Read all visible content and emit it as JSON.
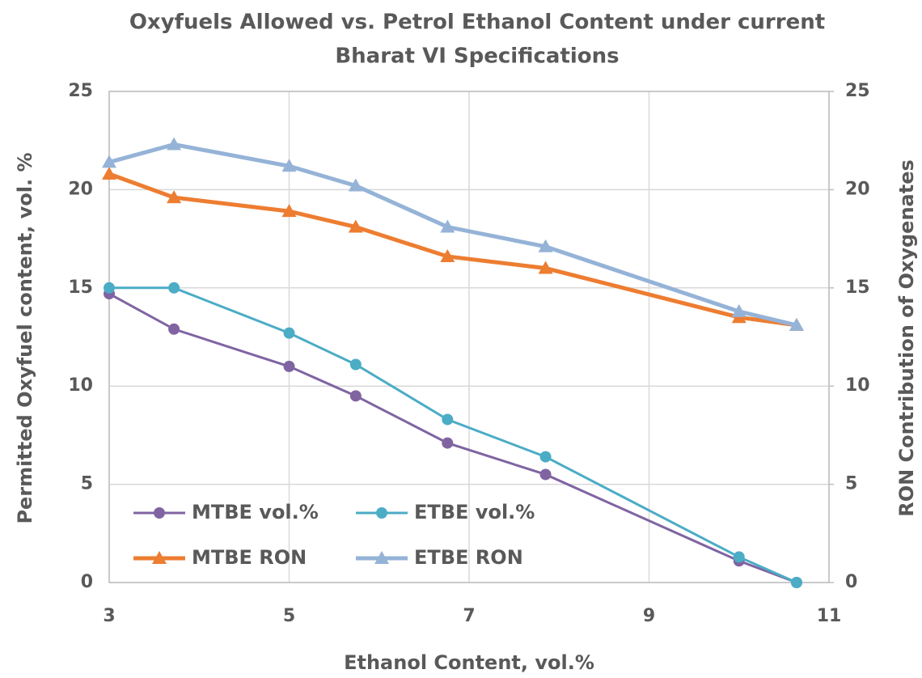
{
  "chart_data": {
    "type": "line",
    "title": [
      "Oxyfuels Allowed vs. Petrol Ethanol Content under current",
      "Bharat VI Specifications"
    ],
    "x_label": "Ethanol Content, vol.%",
    "y_label": "Permitted Oxyfuel content, vol. %",
    "y2_label": "RON Contribution of Oxygenates",
    "x": [
      3,
      3.72,
      5,
      5.74,
      6.76,
      7.85,
      10,
      10.64
    ],
    "series": [
      {
        "name": "MTBE vol.%",
        "color": "#8064a2",
        "marker": "circle",
        "values": [
          14.7,
          12.9,
          11.0,
          9.5,
          7.1,
          5.5,
          1.1,
          0
        ]
      },
      {
        "name": "ETBE vol.%",
        "color": "#4bacc6",
        "marker": "circle",
        "values": [
          15.0,
          15.0,
          12.7,
          11.1,
          8.3,
          6.4,
          1.3,
          0
        ]
      },
      {
        "name": "MTBE RON",
        "color": "#ed7d31",
        "marker": "triangle",
        "axis": "y2",
        "values": [
          20.8,
          19.6,
          18.9,
          18.1,
          16.6,
          16.0,
          13.5,
          13.1
        ]
      },
      {
        "name": "ETBE RON",
        "color": "#95b3d7",
        "marker": "triangle",
        "axis": "y2",
        "values": [
          21.4,
          22.3,
          21.2,
          20.2,
          18.1,
          17.1,
          13.8,
          13.1
        ]
      }
    ],
    "xlim": [
      3,
      11
    ],
    "xticks": [
      3,
      5,
      7,
      9,
      11
    ],
    "ylim": [
      0,
      25
    ],
    "yticks": [
      0,
      5,
      10,
      15,
      20,
      25
    ],
    "y2lim": [
      0,
      25
    ],
    "y2ticks": [
      0,
      5,
      10,
      15,
      20,
      25
    ],
    "grid": true,
    "legend": "lower left"
  }
}
